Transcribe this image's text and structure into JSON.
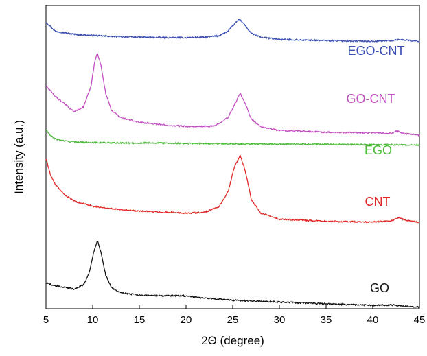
{
  "chart_data": {
    "type": "line",
    "title": "",
    "xlabel": "2Θ (degree)",
    "ylabel": "Intensity (a.u.)",
    "xlim": [
      5,
      45
    ],
    "xticks": [
      5,
      10,
      15,
      20,
      25,
      30,
      35,
      40,
      45
    ],
    "y_ticks_shown": false,
    "grid": false,
    "legend": "inline labels next to each trace",
    "series": [
      {
        "name": "EGO-CNT",
        "color": "#3a4fb0",
        "x": [
          5,
          6,
          8,
          10,
          12,
          14,
          16,
          18,
          20,
          22,
          23.5,
          24.5,
          25.2,
          25.7,
          26.2,
          26.9,
          28,
          30,
          35,
          40,
          42,
          43,
          44,
          45
        ],
        "y": [
          9.45,
          9.15,
          9.05,
          9.01,
          8.98,
          8.96,
          8.95,
          8.94,
          8.94,
          8.95,
          9.0,
          9.15,
          9.4,
          9.55,
          9.4,
          9.1,
          8.95,
          8.88,
          8.84,
          8.82,
          8.84,
          8.88,
          8.84,
          8.82
        ]
      },
      {
        "name": "GO-CNT",
        "color": "#c24fc0",
        "x": [
          5,
          6,
          7,
          8,
          9,
          9.8,
          10.2,
          10.5,
          10.9,
          11.4,
          12,
          13,
          15,
          18,
          21,
          23,
          24.5,
          25.3,
          25.8,
          26.3,
          27,
          28,
          30,
          35,
          40,
          42,
          42.6,
          43.3,
          45
        ],
        "y": [
          7.35,
          7.0,
          6.75,
          6.5,
          6.65,
          7.3,
          8.1,
          8.45,
          8.0,
          7.1,
          6.55,
          6.3,
          6.15,
          6.05,
          6.0,
          6.02,
          6.3,
          6.8,
          7.1,
          6.8,
          6.25,
          6.0,
          5.88,
          5.82,
          5.8,
          5.78,
          5.86,
          5.78,
          5.72
        ]
      },
      {
        "name": "EGO",
        "color": "#4dbb3a",
        "x": [
          5,
          5.5,
          6,
          7,
          8,
          10,
          12,
          14,
          16,
          18,
          20,
          25,
          30,
          35,
          40,
          45
        ],
        "y": [
          5.9,
          5.7,
          5.6,
          5.53,
          5.5,
          5.48,
          5.47,
          5.46,
          5.47,
          5.46,
          5.45,
          5.44,
          5.43,
          5.42,
          5.41,
          5.4
        ]
      },
      {
        "name": "CNT",
        "color": "#e02828",
        "x": [
          5,
          5.5,
          6,
          7,
          8,
          10,
          12,
          15,
          18,
          20,
          22,
          23.5,
          24.5,
          25.2,
          25.8,
          26.3,
          27,
          28,
          30,
          35,
          40,
          42,
          42.8,
          43.5,
          45
        ],
        "y": [
          4.95,
          4.4,
          4.1,
          3.75,
          3.55,
          3.38,
          3.3,
          3.22,
          3.18,
          3.15,
          3.18,
          3.35,
          3.85,
          4.7,
          5.05,
          4.6,
          3.6,
          3.15,
          2.95,
          2.88,
          2.86,
          2.9,
          3.0,
          2.92,
          2.85
        ]
      },
      {
        "name": "GO",
        "color": "#111111",
        "x": [
          5,
          6,
          7,
          8,
          9,
          9.6,
          10.1,
          10.5,
          10.9,
          11.4,
          12,
          13,
          15,
          17,
          20,
          22,
          25,
          30,
          35,
          40,
          42.4,
          43,
          45
        ],
        "y": [
          0.85,
          0.75,
          0.7,
          0.65,
          0.78,
          1.15,
          1.85,
          2.25,
          1.85,
          1.1,
          0.7,
          0.52,
          0.45,
          0.43,
          0.42,
          0.35,
          0.28,
          0.22,
          0.16,
          0.11,
          0.12,
          0.09,
          0.06
        ]
      }
    ],
    "ylim": [
      0,
      10
    ]
  }
}
